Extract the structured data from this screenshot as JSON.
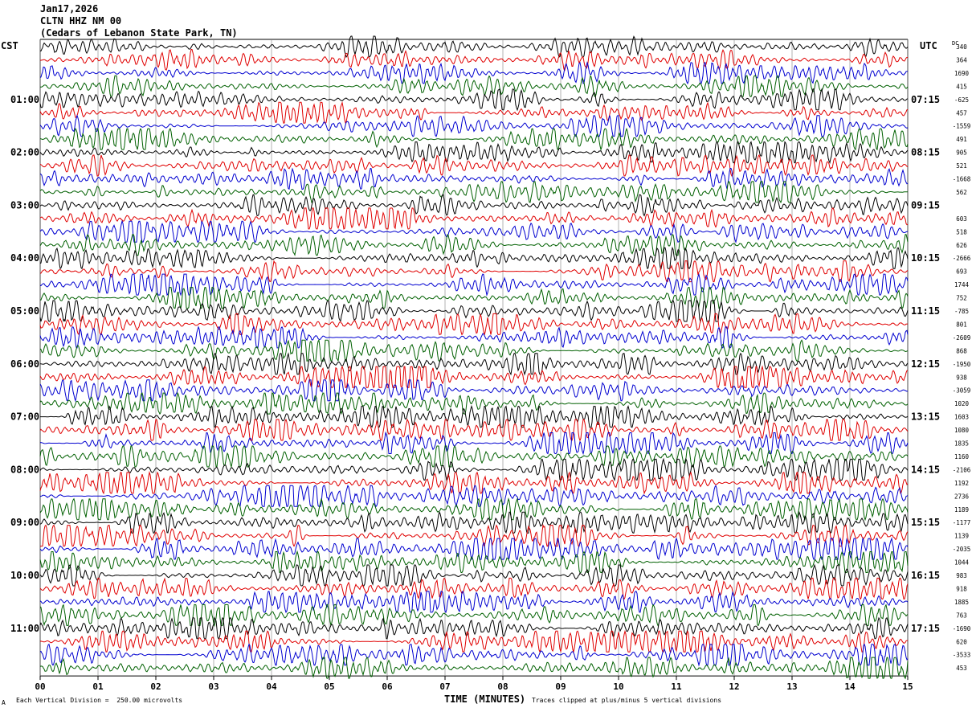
{
  "header": {
    "date": "Jan17,2026",
    "station": "CLTN HHZ NM 00",
    "location": "(Cedars of Lebanon State Park, TN)"
  },
  "labels": {
    "left_zone": "CST",
    "right_zone": "UTC",
    "dc": "DC",
    "xlabel": "TIME (MINUTES)",
    "footer_left": "Each Vertical Division =  250.00 microvolts",
    "footer_right": "Traces clipped at plus/minus 5 vertical divisions",
    "corner_mark": "A"
  },
  "colors": {
    "trace_cycle": [
      "#000000",
      "#e00000",
      "#0000d0",
      "#006000"
    ],
    "grid": "#808080"
  },
  "chart_data": {
    "type": "line",
    "title": "CLTN HHZ NM 00",
    "xlabel": "TIME (MINUTES)",
    "xlim": [
      0,
      15
    ],
    "x_ticks": [
      "00",
      "01",
      "02",
      "03",
      "04",
      "05",
      "06",
      "07",
      "08",
      "09",
      "10",
      "11",
      "12",
      "13",
      "14",
      "15"
    ],
    "y_left_ticks": [
      "01:00",
      "02:00",
      "03:00",
      "04:00",
      "05:00",
      "06:00",
      "07:00",
      "08:00",
      "09:00",
      "10:00",
      "11:00"
    ],
    "y_right_ticks": [
      "07:15",
      "08:15",
      "09:15",
      "10:15",
      "11:15",
      "12:15",
      "13:15",
      "14:15",
      "15:15",
      "16:15",
      "17:15"
    ],
    "trace_minutes": 15,
    "grid": true,
    "dc_offsets": [
      "340",
      "364",
      "1690",
      "415",
      "-625",
      "457",
      "-1559",
      "491",
      "905",
      "521",
      "-1668",
      "562",
      "",
      "603",
      "518",
      "626",
      "-2666",
      "693",
      "1744",
      "752",
      "-785",
      "801",
      "-2609",
      "868",
      "-1950",
      "938",
      "-3059",
      "1020",
      "1603",
      "1080",
      "1835",
      "1160",
      "-2106",
      "1192",
      "2736",
      "1189",
      "-1177",
      "1139",
      "-2035",
      "1044",
      "983",
      "918",
      "1885",
      "763",
      "-1690",
      "620",
      "-3533",
      "453"
    ],
    "amplitude_per_trace": [
      0.8,
      0.8,
      0.8,
      0.8,
      0.8,
      0.8,
      0.8,
      0.9,
      0.9,
      0.9,
      0.9,
      0.9,
      0.9,
      0.9,
      1.0,
      1.0,
      1.0,
      1.0,
      1.0,
      1.1,
      1.1,
      1.1,
      1.1,
      1.1,
      1.1,
      1.2,
      1.2,
      1.2,
      1.2,
      1.2,
      1.2,
      1.2,
      1.2,
      1.2,
      1.2,
      1.2,
      1.2,
      1.2,
      1.2,
      1.2,
      1.1,
      1.1,
      1.1,
      1.1,
      1.1,
      1.1,
      1.1,
      1.1
    ]
  }
}
